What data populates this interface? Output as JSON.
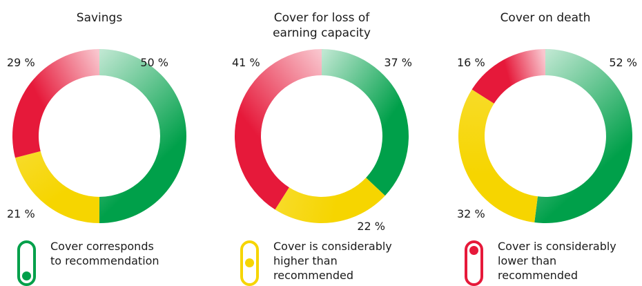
{
  "colors": {
    "green": "#00a04a",
    "yellow": "#f6d500",
    "red": "#e6193a"
  },
  "chart_data": [
    {
      "type": "pie",
      "title": [
        "Savings"
      ],
      "slices": [
        {
          "key": "green",
          "value": 50,
          "label": "50 %"
        },
        {
          "key": "yellow",
          "value": 21,
          "label": "21 %"
        },
        {
          "key": "red",
          "value": 29,
          "label": "29 %"
        }
      ]
    },
    {
      "type": "pie",
      "title": [
        "Cover for loss of",
        "earning capacity"
      ],
      "slices": [
        {
          "key": "green",
          "value": 37,
          "label": "37 %"
        },
        {
          "key": "yellow",
          "value": 22,
          "label": "22 %"
        },
        {
          "key": "red",
          "value": 41,
          "label": "41 %"
        }
      ]
    },
    {
      "type": "pie",
      "title": [
        "Cover on death"
      ],
      "slices": [
        {
          "key": "green",
          "value": 52,
          "label": "52 %"
        },
        {
          "key": "yellow",
          "value": 32,
          "label": "32 %"
        },
        {
          "key": "red",
          "value": 16,
          "label": "16 %"
        }
      ]
    }
  ],
  "legend": [
    {
      "key": "green",
      "icon": "green-toggle-icon",
      "lines": [
        "Cover corresponds",
        "to recommendation"
      ]
    },
    {
      "key": "yellow",
      "icon": "yellow-toggle-icon",
      "lines": [
        "Cover is considerably",
        "higher than",
        "recommended"
      ]
    },
    {
      "key": "red",
      "icon": "red-toggle-icon",
      "lines": [
        "Cover is considerably",
        "lower than",
        "recommended"
      ]
    }
  ]
}
